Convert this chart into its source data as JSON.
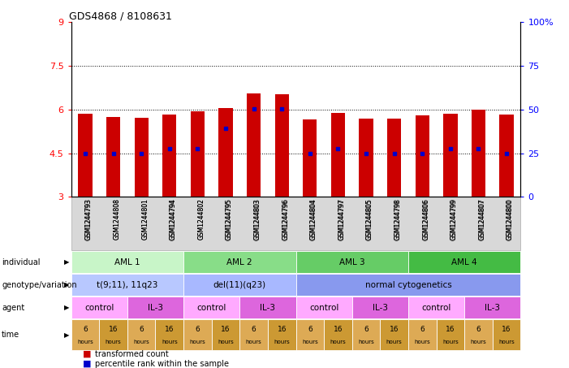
{
  "title": "GDS4868 / 8108631",
  "samples": [
    "GSM1244793",
    "GSM1244808",
    "GSM1244801",
    "GSM1244794",
    "GSM1244802",
    "GSM1244795",
    "GSM1244803",
    "GSM1244796",
    "GSM1244804",
    "GSM1244797",
    "GSM1244805",
    "GSM1244798",
    "GSM1244806",
    "GSM1244799",
    "GSM1244807",
    "GSM1244800"
  ],
  "bar_heights": [
    5.85,
    5.75,
    5.72,
    5.82,
    5.95,
    6.05,
    6.55,
    6.52,
    5.65,
    5.88,
    5.68,
    5.68,
    5.8,
    5.85,
    6.0,
    5.82
  ],
  "bar_bottom": 3.0,
  "percentile_values": [
    4.5,
    4.5,
    4.5,
    4.65,
    4.65,
    5.35,
    6.02,
    6.02,
    4.5,
    4.65,
    4.5,
    4.5,
    4.5,
    4.65,
    4.65,
    4.5
  ],
  "ylim_left": [
    3,
    9
  ],
  "ylim_right": [
    0,
    100
  ],
  "yticks_left": [
    3,
    4.5,
    6,
    7.5,
    9
  ],
  "yticks_right": [
    0,
    25,
    50,
    75,
    100
  ],
  "ytick_labels_right": [
    "0",
    "25",
    "50",
    "75",
    "100%"
  ],
  "bar_color": "#cc0000",
  "percentile_color": "#0000cc",
  "dotted_line_y": [
    4.5,
    6.0,
    7.5
  ],
  "row_labels": [
    "individual",
    "genotype/variation",
    "agent",
    "time"
  ],
  "individual_groups": [
    {
      "label": "AML 1",
      "start": 0,
      "end": 3,
      "color": "#c8f5c8"
    },
    {
      "label": "AML 2",
      "start": 4,
      "end": 7,
      "color": "#88dd88"
    },
    {
      "label": "AML 3",
      "start": 8,
      "end": 11,
      "color": "#66cc66"
    },
    {
      "label": "AML 4",
      "start": 12,
      "end": 15,
      "color": "#44bb44"
    }
  ],
  "genotype_groups": [
    {
      "label": "t(9;11), 11q23",
      "start": 0,
      "end": 3,
      "color": "#b8c8ff"
    },
    {
      "label": "del(11)(q23)",
      "start": 4,
      "end": 7,
      "color": "#a8b8ff"
    },
    {
      "label": "normal cytogenetics",
      "start": 8,
      "end": 15,
      "color": "#8899ee"
    }
  ],
  "agent_groups": [
    {
      "label": "control",
      "start": 0,
      "end": 1,
      "color": "#ffaaff"
    },
    {
      "label": "IL-3",
      "start": 2,
      "end": 3,
      "color": "#dd66dd"
    },
    {
      "label": "control",
      "start": 4,
      "end": 5,
      "color": "#ffaaff"
    },
    {
      "label": "IL-3",
      "start": 6,
      "end": 7,
      "color": "#dd66dd"
    },
    {
      "label": "control",
      "start": 8,
      "end": 9,
      "color": "#ffaaff"
    },
    {
      "label": "IL-3",
      "start": 10,
      "end": 11,
      "color": "#dd66dd"
    },
    {
      "label": "control",
      "start": 12,
      "end": 13,
      "color": "#ffaaff"
    },
    {
      "label": "IL-3",
      "start": 14,
      "end": 15,
      "color": "#dd66dd"
    }
  ],
  "time_colors": [
    "#ddaa55",
    "#cc9933"
  ],
  "legend_items": [
    {
      "label": "transformed count",
      "color": "#cc0000"
    },
    {
      "label": "percentile rank within the sample",
      "color": "#0000cc"
    }
  ]
}
